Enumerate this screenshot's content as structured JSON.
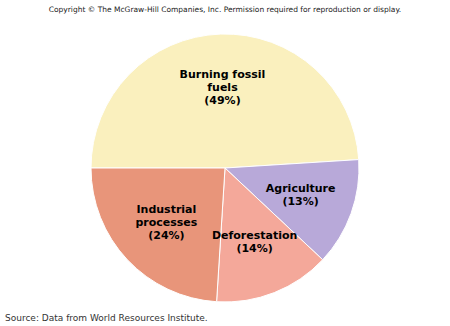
{
  "chart_data": {
    "type": "pie",
    "title": "Copyright © The McGraw-Hill Companies, Inc. Permission required for reproduction or display.",
    "annotations": [
      "Source: Data from World Resources Institute."
    ],
    "categories": [
      "Burning fossil\nfuels",
      "Agriculture",
      "Deforestation",
      "Industrial\nprocesses"
    ],
    "values": [
      49,
      13,
      14,
      24
    ],
    "value_labels": [
      "(49%)",
      "(13%)",
      "(14%)",
      "(24%)"
    ],
    "data_labels": true,
    "colors": [
      "#FAF0BE",
      "#B8A9D9",
      "#F4A89A",
      "#E8957A"
    ]
  }
}
